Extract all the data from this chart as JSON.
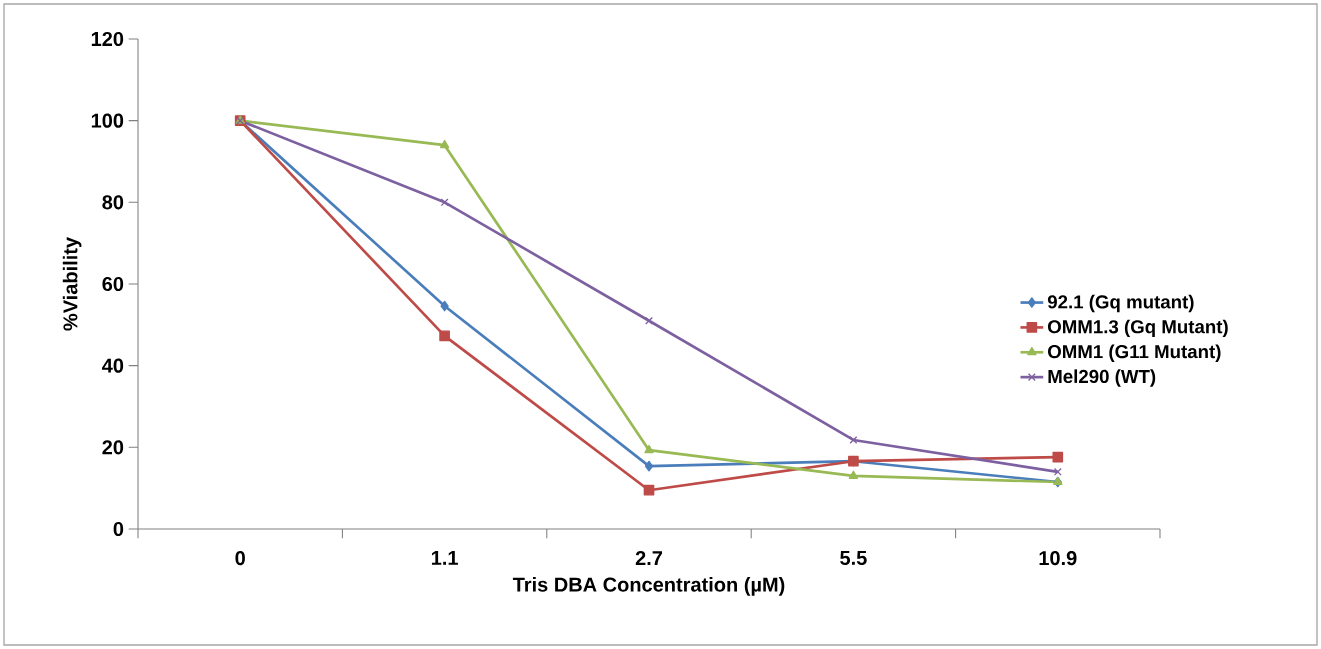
{
  "chart_data": {
    "type": "line",
    "xlabel": "Tris DBA  Concentration (µM)",
    "ylabel": "%Viability",
    "categories": [
      "0",
      "1.1",
      "2.7",
      "5.5",
      "10.9"
    ],
    "series": [
      {
        "name": "92.1 (Gq mutant)",
        "color": "#4a7ebb",
        "marker": "diamond",
        "values": [
          100,
          54.6,
          15.4,
          16.6,
          11.5
        ]
      },
      {
        "name": "OMM1.3 (Gq Mutant)",
        "color": "#be4b48",
        "marker": "square",
        "values": [
          100,
          47.3,
          9.5,
          16.6,
          17.6
        ]
      },
      {
        "name": "OMM1 (G11 Mutant)",
        "color": "#98b954",
        "marker": "triangle",
        "values": [
          100,
          94,
          19.3,
          13,
          11.5
        ]
      },
      {
        "name": "Mel290  (WT)",
        "color": "#7d60a0",
        "marker": "cross",
        "values": [
          100,
          80,
          51,
          21.8,
          14
        ]
      }
    ],
    "ylim": [
      0,
      120
    ],
    "yticks": [
      0,
      20,
      40,
      60,
      80,
      100,
      120
    ],
    "grid": false,
    "legend": "right",
    "line_style": "solid"
  }
}
